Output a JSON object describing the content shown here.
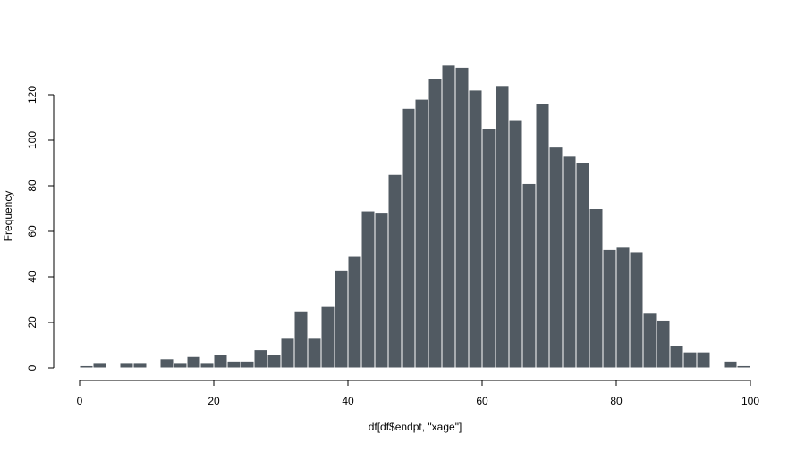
{
  "chart_data": {
    "type": "bar",
    "title": "",
    "xlabel": "df[df$endpt, \"xage\"]",
    "ylabel": "Frequency",
    "xlim": [
      0,
      100
    ],
    "ylim": [
      0,
      120
    ],
    "x_ticks": [
      0,
      20,
      40,
      60,
      80,
      100
    ],
    "y_ticks": [
      0,
      20,
      40,
      60,
      80,
      100,
      120
    ],
    "x_tick_labels": [
      "0",
      "20",
      "40",
      "60",
      "80",
      "100"
    ],
    "y_tick_labels": [
      "0",
      "20",
      "40",
      "60",
      "80",
      "100",
      "120"
    ],
    "bin_width": 2,
    "bin_edges": [
      0,
      2,
      4,
      6,
      8,
      10,
      12,
      14,
      16,
      18,
      20,
      22,
      24,
      26,
      28,
      30,
      32,
      34,
      36,
      38,
      40,
      42,
      44,
      46,
      48,
      50,
      52,
      54,
      56,
      58,
      60,
      62,
      64,
      66,
      68,
      70,
      72,
      74,
      76,
      78,
      80,
      82,
      84,
      86,
      88,
      90,
      92,
      94,
      96,
      98,
      100
    ],
    "values": [
      1,
      2,
      0,
      2,
      2,
      0,
      4,
      2,
      5,
      2,
      6,
      3,
      3,
      8,
      6,
      13,
      25,
      13,
      27,
      43,
      49,
      69,
      68,
      85,
      114,
      118,
      127,
      133,
      132,
      122,
      105,
      124,
      109,
      81,
      116,
      97,
      93,
      90,
      70,
      52,
      53,
      51,
      24,
      21,
      10,
      7,
      7,
      0,
      3,
      1
    ],
    "bar_color": "#515a62",
    "bar_edge_color": "#ffffff",
    "grid": false,
    "legend": "none"
  }
}
